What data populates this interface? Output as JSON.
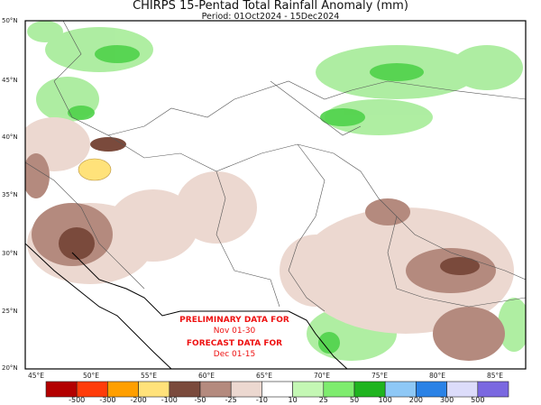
{
  "title": "CHIRPS 15-Pentad Total Rainfall Anomaly (mm)",
  "subtitle": "Period: 01Oct2024 - 15Dec2024",
  "lat_labels": [
    "50°N",
    "45°N",
    "40°N",
    "35°N",
    "30°N",
    "25°N",
    "20°N"
  ],
  "lon_labels": [
    "45°E",
    "50°E",
    "55°E",
    "60°E",
    "65°E",
    "70°E",
    "75°E",
    "80°E",
    "85°E"
  ],
  "annotation": {
    "line1": "PRELIMINARY DATA FOR",
    "line2": "Nov 01-30",
    "line3": "FORECAST DATA FOR",
    "line4": "Dec 01-15"
  },
  "colorbar": {
    "colors": [
      "#b30000",
      "#ff3c0a",
      "#ff9f00",
      "#ffe27a",
      "#7a4a3c",
      "#b48a7e",
      "#ecd8d0",
      "#ffffff",
      "#c4f7b4",
      "#7eec6e",
      "#1fb41f",
      "#8ec8f6",
      "#2a82e6",
      "#dcdcfa",
      "#7a68e0"
    ],
    "labels": [
      "-500",
      "-300",
      "-200",
      "-100",
      "-50",
      "-25",
      "-10",
      "10",
      "25",
      "50",
      "100",
      "200",
      "300",
      "500"
    ]
  }
}
